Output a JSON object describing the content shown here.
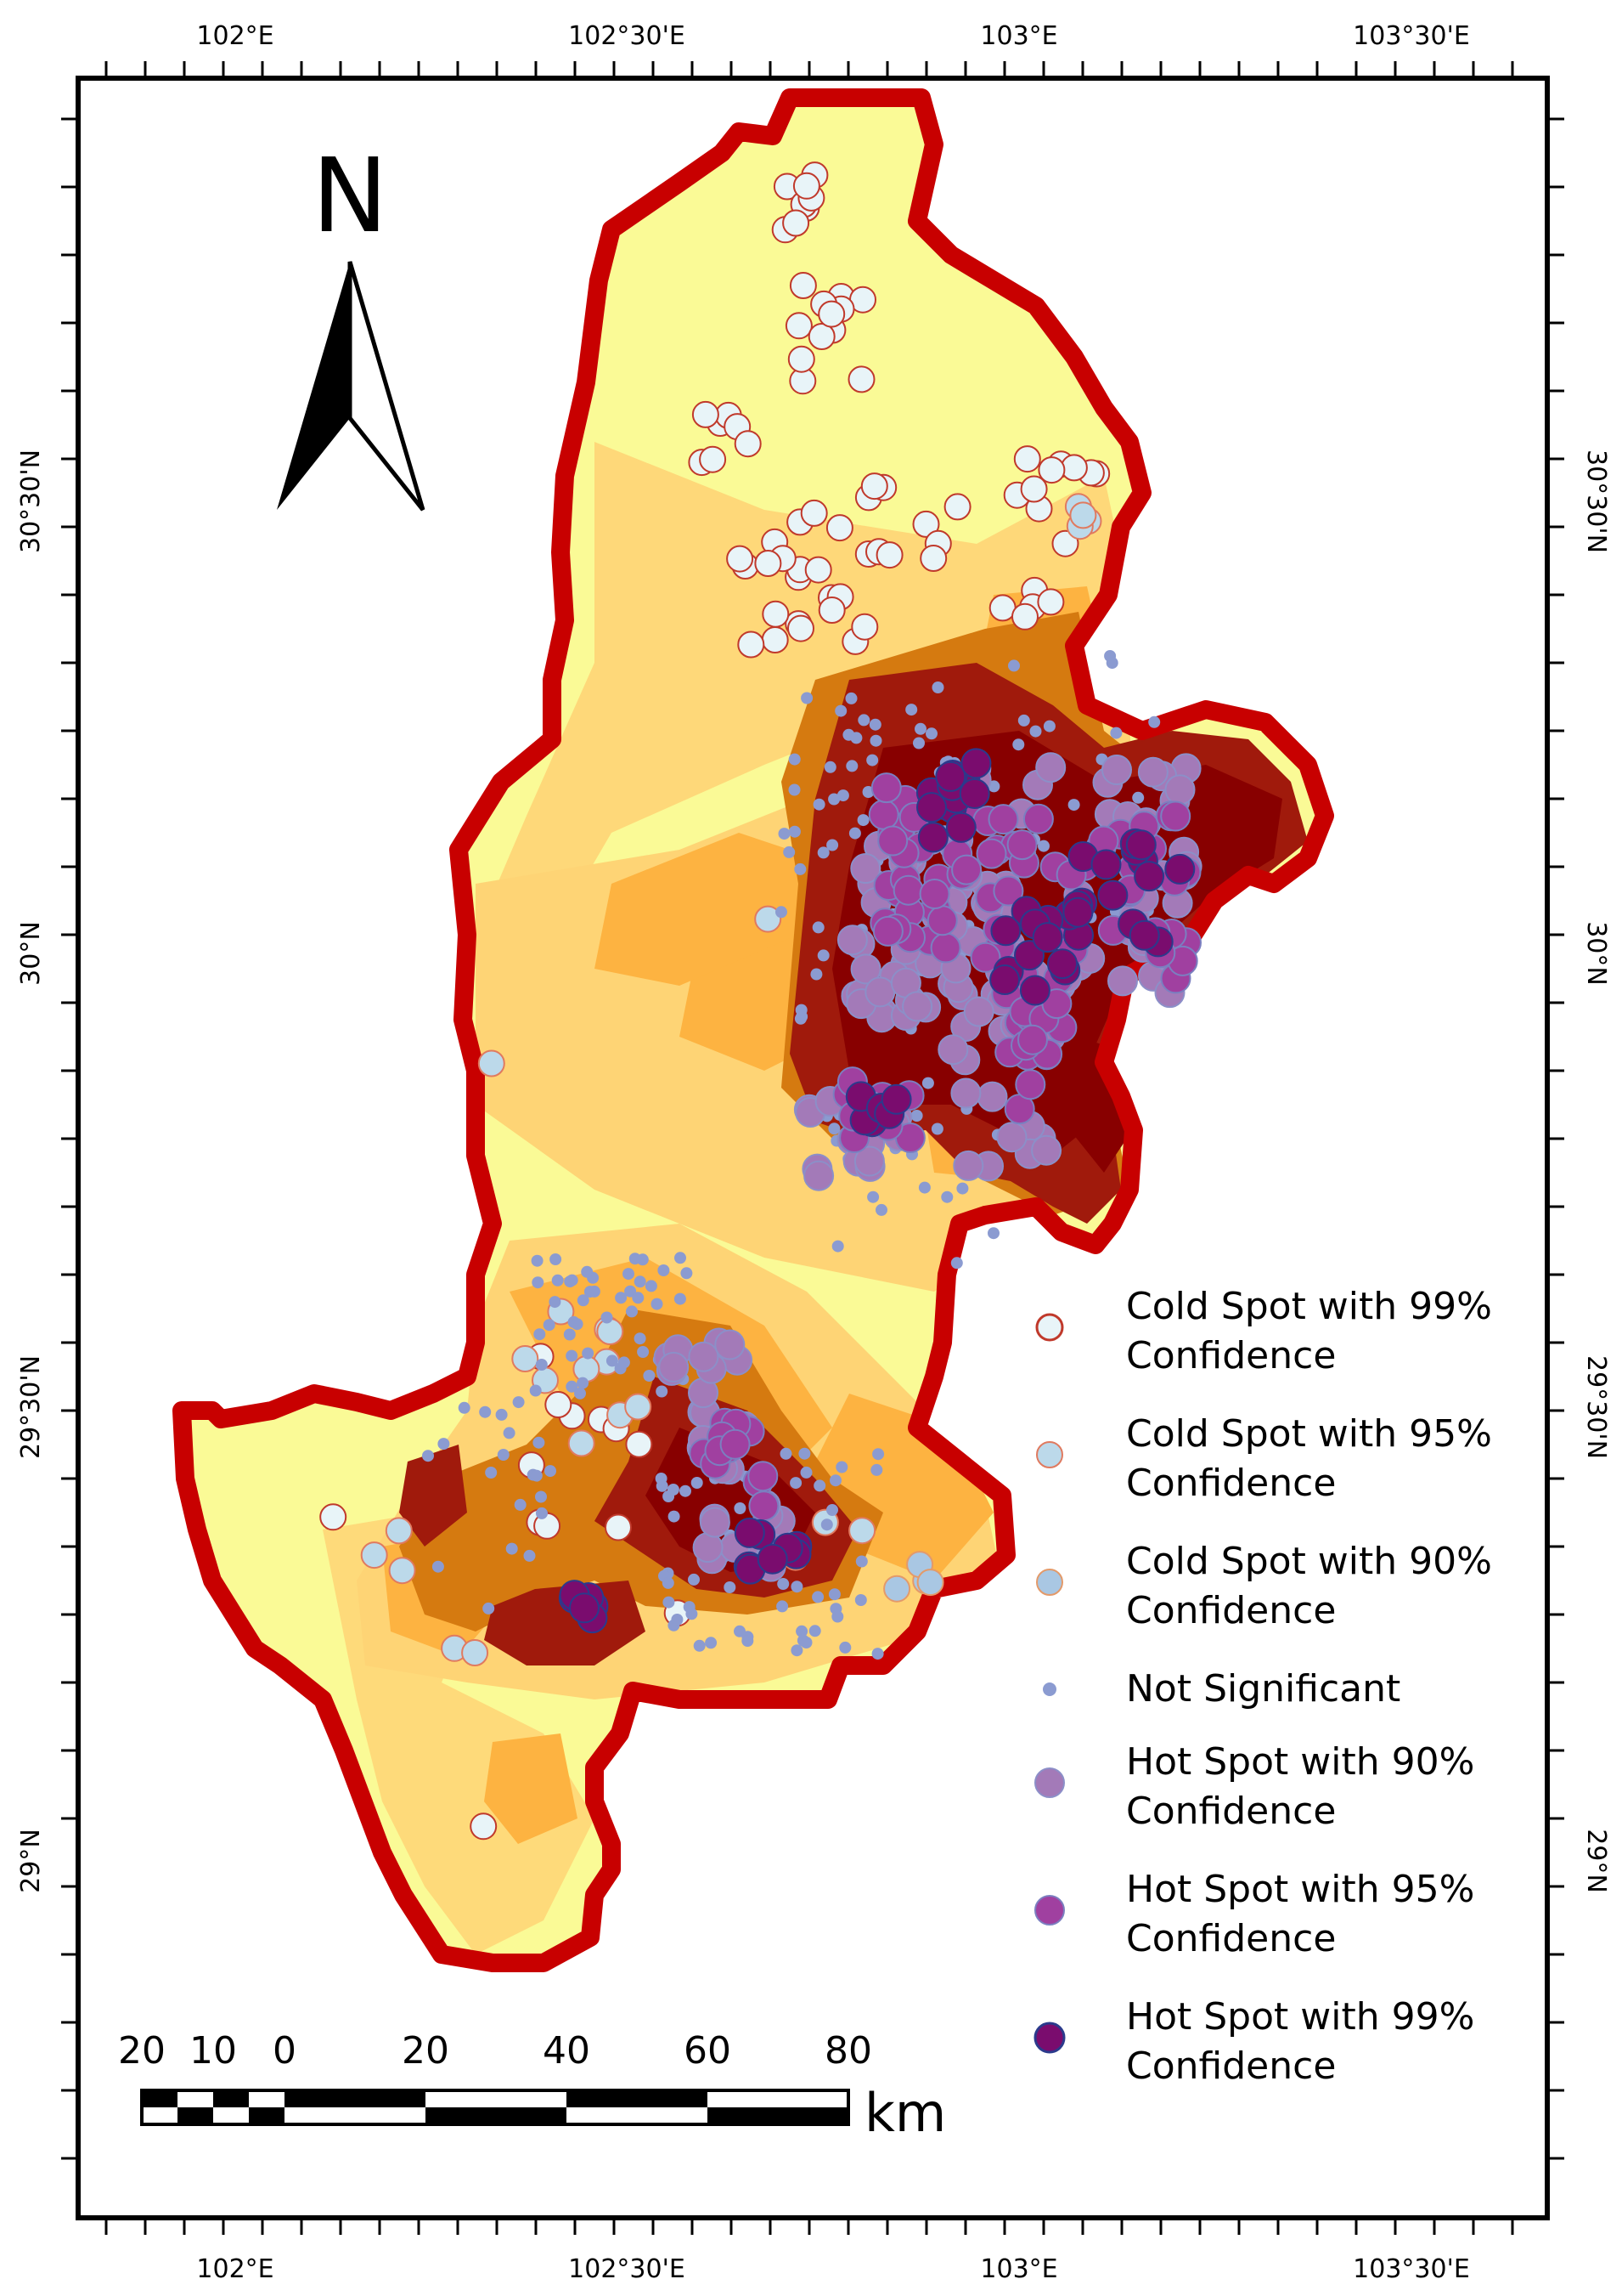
{
  "map": {
    "north_label": "N",
    "scale_unit": "km",
    "scale_labels": [
      "20",
      "10",
      "0",
      "20",
      "40",
      "60",
      "80"
    ],
    "lon_labels": [
      "102°E",
      "102°30'E",
      "103°E",
      "103°30'E"
    ],
    "lat_labels": [
      "30°30'N",
      "30°N",
      "29°30'N",
      "29°N"
    ],
    "colors": {
      "boundary": "#c80000",
      "low": "#fafa96",
      "mid_low": "#fed475",
      "mid": "#fdb341",
      "mid_high": "#d57a10",
      "high": "#a01a0c",
      "very_high": "#880000"
    }
  },
  "legend": {
    "items": [
      {
        "line1": "Cold Spot with 99%",
        "line2": "Confidence",
        "fill": "#e8f4f8",
        "stroke": "#c0392b",
        "symbol": "cold99"
      },
      {
        "line1": "Cold Spot with 95%",
        "line2": "Confidence",
        "fill": "#bcd9ea",
        "stroke": "#e07a5f",
        "symbol": "cold95"
      },
      {
        "line1": "Cold Spot with 90%",
        "line2": "Confidence",
        "fill": "#a9c7e3",
        "stroke": "#e39a6a",
        "symbol": "cold90"
      },
      {
        "line1": "Not Significant",
        "line2": "",
        "fill": "#8b9bd1",
        "stroke": "#8b9bd1",
        "symbol": "ns"
      },
      {
        "line1": "Hot Spot with 90%",
        "line2": "Confidence",
        "fill": "#a37ab8",
        "stroke": "#8c8fc8",
        "symbol": "hot90"
      },
      {
        "line1": "Hot Spot with 95%",
        "line2": "Confidence",
        "fill": "#a040a0",
        "stroke": "#7b7fc0",
        "symbol": "hot95"
      },
      {
        "line1": "Hot Spot with 99%",
        "line2": "Confidence",
        "fill": "#7a0c6e",
        "stroke": "#2b3a8c",
        "symbol": "hot99"
      }
    ]
  }
}
